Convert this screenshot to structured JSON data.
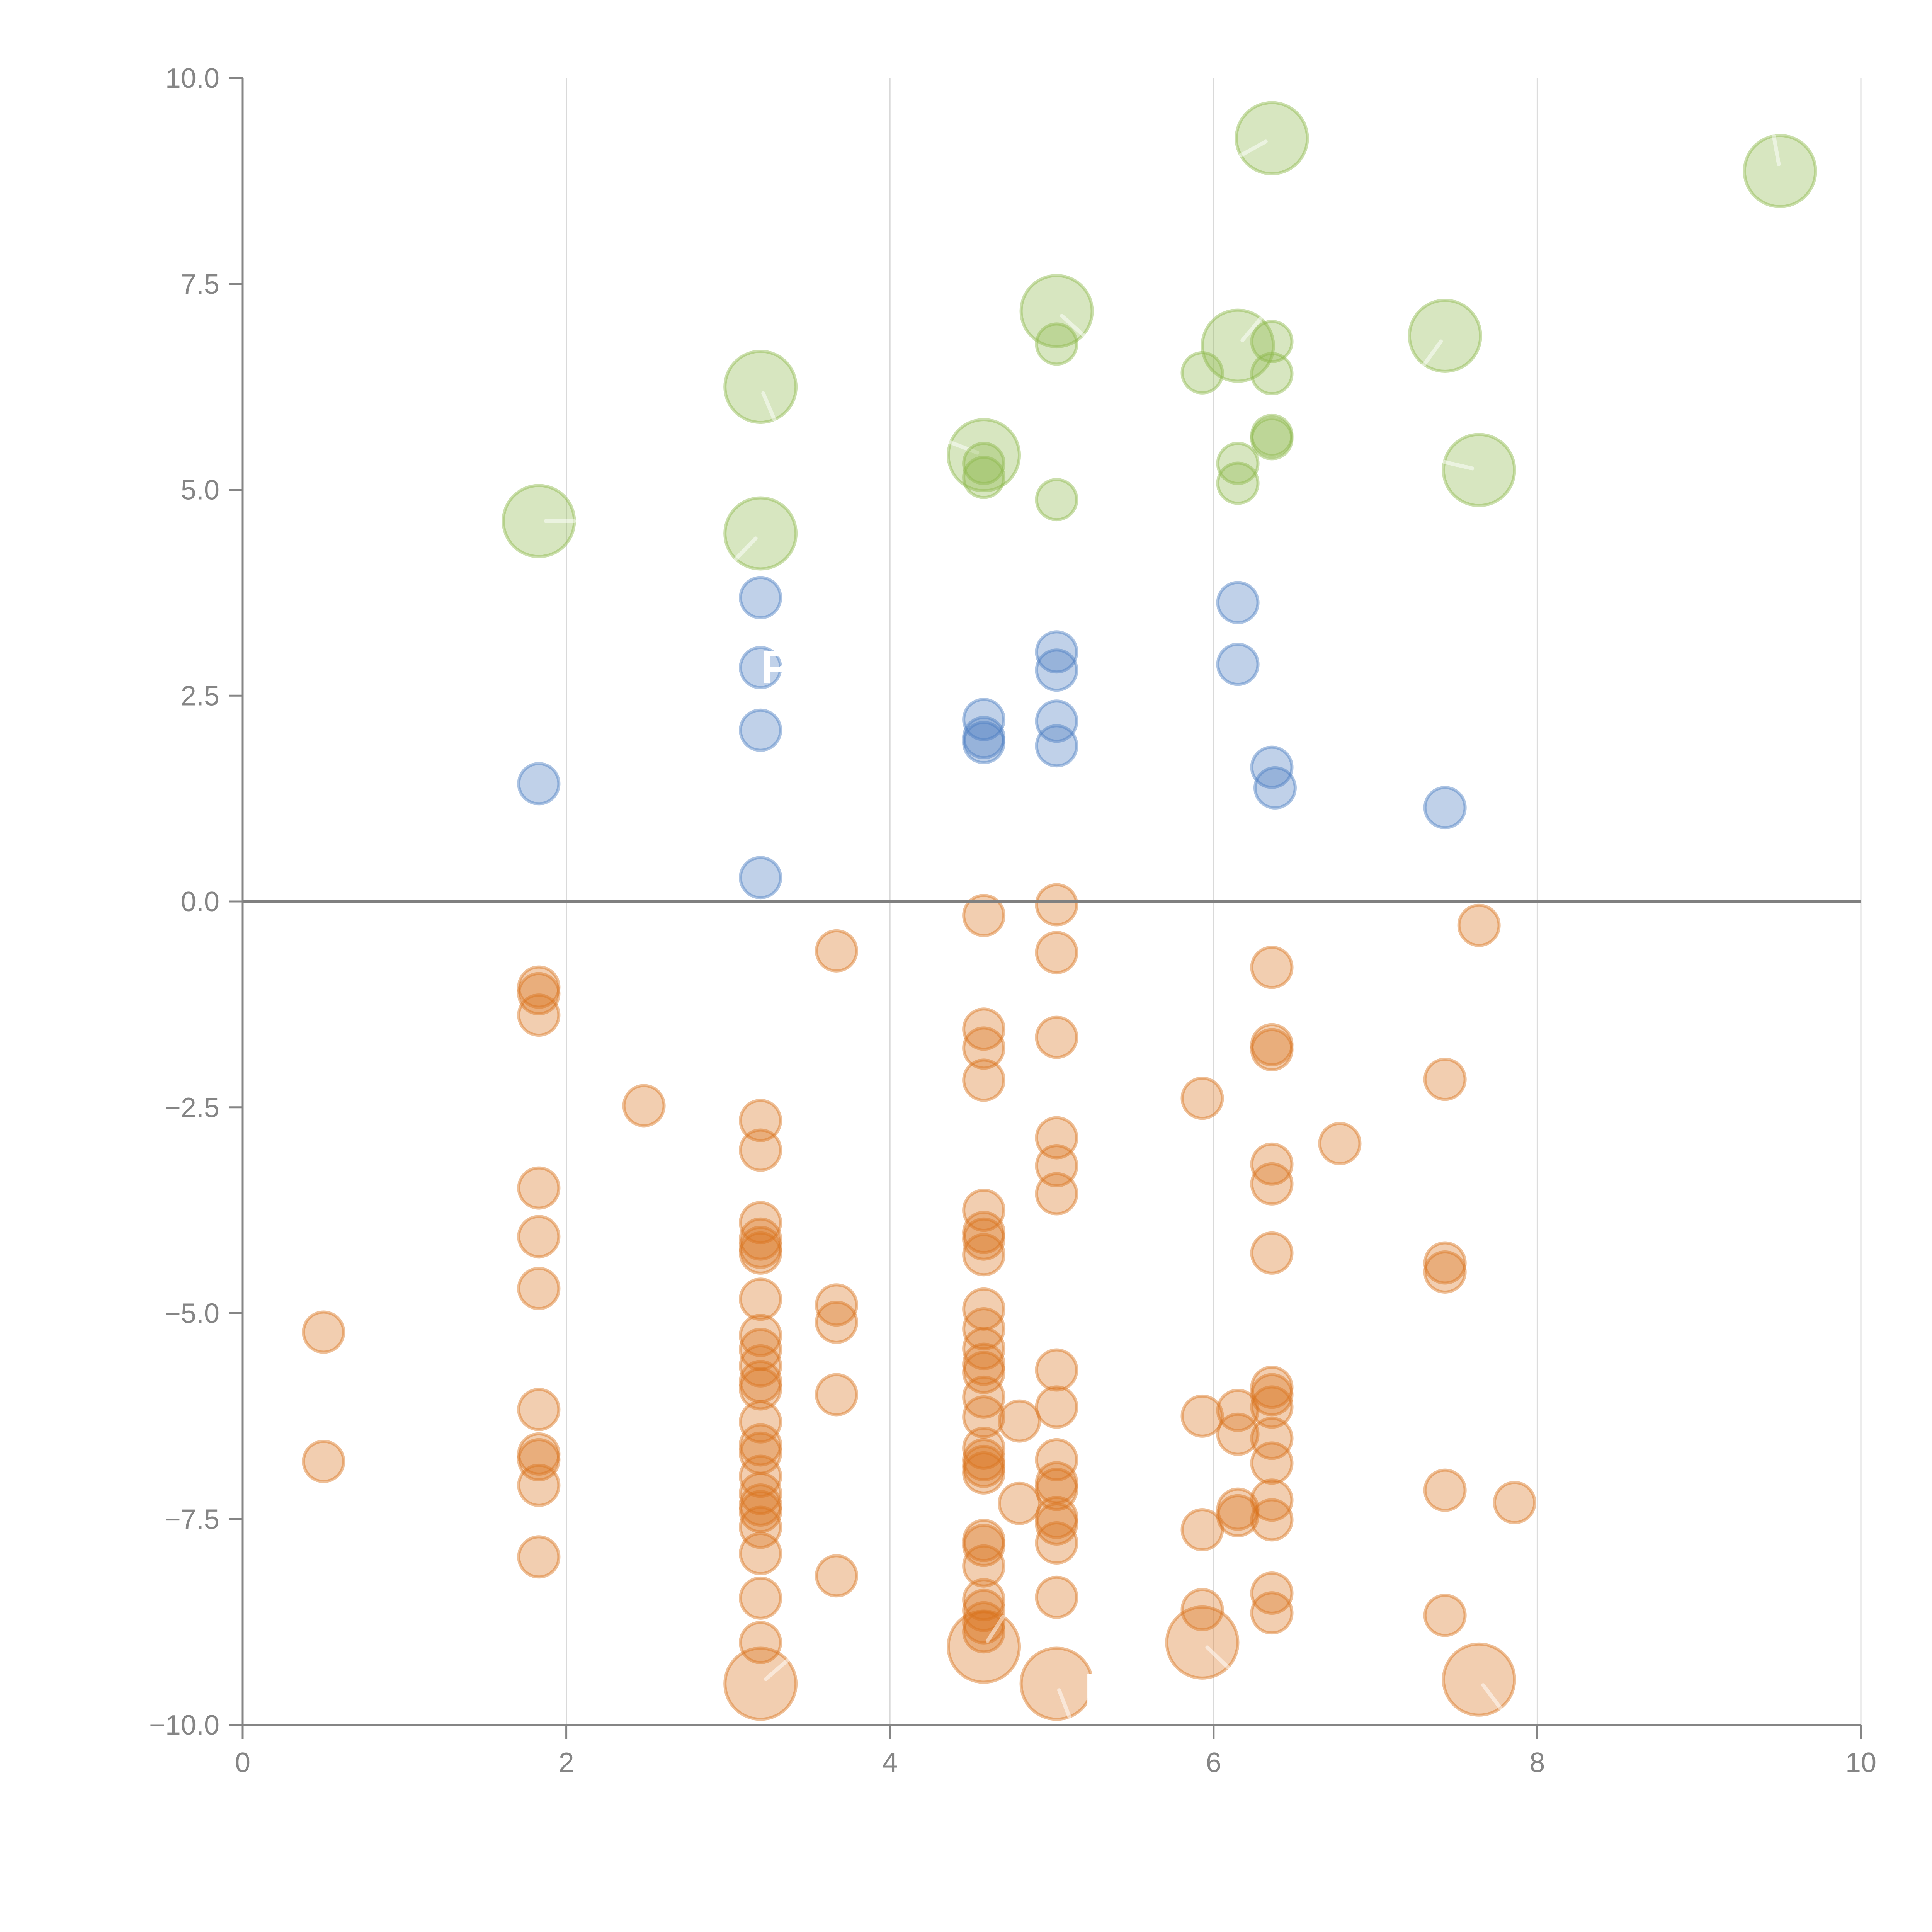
{
  "chart_data": {
    "type": "scatter",
    "variant": "bubble",
    "title": "",
    "xlabel": "",
    "ylabel": "",
    "xlim": [
      0,
      10
    ],
    "ylim": [
      -10,
      10
    ],
    "x_ticks": [
      0,
      2,
      4,
      6,
      8,
      10
    ],
    "x_tick_labels": [
      "0",
      "2",
      "4",
      "6",
      "8",
      "10"
    ],
    "y_ticks": [
      -10,
      -7.5,
      -5,
      -2.5,
      0,
      2.5,
      5,
      7.5,
      10
    ],
    "y_tick_labels": [
      "−10.0",
      "−7.5",
      "−5.0",
      "−2.5",
      "0.0",
      "2.5",
      "5.0",
      "7.5",
      "10.0"
    ],
    "grid": "vertical",
    "reference_line_y": 0,
    "legend": "none",
    "series": [
      {
        "name": "green",
        "color": "#8cb84a",
        "points": [
          {
            "x": 1.83,
            "y": 4.62,
            "size": "large"
          },
          {
            "x": 3.2,
            "y": 6.25,
            "size": "large"
          },
          {
            "x": 3.2,
            "y": 4.47,
            "size": "large"
          },
          {
            "x": 4.58,
            "y": 5.42,
            "size": "large"
          },
          {
            "x": 4.58,
            "y": 5.32,
            "size": "small"
          },
          {
            "x": 4.58,
            "y": 5.15,
            "size": "small"
          },
          {
            "x": 5.03,
            "y": 7.17,
            "size": "large"
          },
          {
            "x": 5.03,
            "y": 6.77,
            "size": "small"
          },
          {
            "x": 5.03,
            "y": 4.88,
            "size": "small"
          },
          {
            "x": 5.93,
            "y": 6.42,
            "size": "small"
          },
          {
            "x": 6.15,
            "y": 6.75,
            "size": "large"
          },
          {
            "x": 6.15,
            "y": 5.32,
            "size": "small"
          },
          {
            "x": 6.15,
            "y": 5.08,
            "size": "small"
          },
          {
            "x": 6.36,
            "y": 9.27,
            "size": "large"
          },
          {
            "x": 6.36,
            "y": 6.8,
            "size": "small"
          },
          {
            "x": 6.36,
            "y": 6.41,
            "size": "small"
          },
          {
            "x": 6.36,
            "y": 5.66,
            "size": "small"
          },
          {
            "x": 6.36,
            "y": 5.62,
            "size": "small"
          },
          {
            "x": 7.43,
            "y": 6.87,
            "size": "large"
          },
          {
            "x": 7.64,
            "y": 5.24,
            "size": "large"
          },
          {
            "x": 9.5,
            "y": 8.87,
            "size": "large"
          }
        ]
      },
      {
        "name": "blue",
        "color": "#4a7cc1",
        "points": [
          {
            "x": 1.83,
            "y": 1.43,
            "size": "small"
          },
          {
            "x": 3.2,
            "y": 3.69,
            "size": "small"
          },
          {
            "x": 3.2,
            "y": 2.84,
            "size": "small"
          },
          {
            "x": 3.2,
            "y": 2.08,
            "size": "small"
          },
          {
            "x": 3.2,
            "y": 0.29,
            "size": "small"
          },
          {
            "x": 4.58,
            "y": 2.21,
            "size": "small"
          },
          {
            "x": 4.58,
            "y": 1.99,
            "size": "small"
          },
          {
            "x": 4.58,
            "y": 1.93,
            "size": "small"
          },
          {
            "x": 5.03,
            "y": 3.03,
            "size": "small"
          },
          {
            "x": 5.03,
            "y": 2.81,
            "size": "small"
          },
          {
            "x": 5.03,
            "y": 2.19,
            "size": "small"
          },
          {
            "x": 5.03,
            "y": 1.89,
            "size": "small"
          },
          {
            "x": 6.15,
            "y": 3.63,
            "size": "small"
          },
          {
            "x": 6.15,
            "y": 2.88,
            "size": "small"
          },
          {
            "x": 6.36,
            "y": 1.63,
            "size": "small"
          },
          {
            "x": 6.38,
            "y": 1.38,
            "size": "small"
          },
          {
            "x": 7.43,
            "y": 1.14,
            "size": "small"
          }
        ]
      },
      {
        "name": "orange",
        "color": "#d9741c",
        "points": [
          {
            "x": 0.5,
            "y": -5.23,
            "size": "small"
          },
          {
            "x": 0.5,
            "y": -6.8,
            "size": "small"
          },
          {
            "x": 1.83,
            "y": -1.04,
            "size": "small"
          },
          {
            "x": 1.83,
            "y": -1.12,
            "size": "small"
          },
          {
            "x": 1.83,
            "y": -1.38,
            "size": "small"
          },
          {
            "x": 1.83,
            "y": -3.48,
            "size": "small"
          },
          {
            "x": 1.83,
            "y": -4.07,
            "size": "small"
          },
          {
            "x": 1.83,
            "y": -4.7,
            "size": "small"
          },
          {
            "x": 1.83,
            "y": -6.17,
            "size": "small"
          },
          {
            "x": 1.83,
            "y": -6.71,
            "size": "small"
          },
          {
            "x": 1.83,
            "y": -6.78,
            "size": "small"
          },
          {
            "x": 1.83,
            "y": -7.09,
            "size": "small"
          },
          {
            "x": 1.83,
            "y": -7.96,
            "size": "small"
          },
          {
            "x": 2.48,
            "y": -2.48,
            "size": "small"
          },
          {
            "x": 3.2,
            "y": -2.66,
            "size": "small"
          },
          {
            "x": 3.2,
            "y": -3.02,
            "size": "small"
          },
          {
            "x": 3.2,
            "y": -3.9,
            "size": "small"
          },
          {
            "x": 3.2,
            "y": -4.1,
            "size": "small"
          },
          {
            "x": 3.2,
            "y": -4.2,
            "size": "small"
          },
          {
            "x": 3.2,
            "y": -4.27,
            "size": "small"
          },
          {
            "x": 3.2,
            "y": -4.83,
            "size": "small"
          },
          {
            "x": 3.2,
            "y": -5.27,
            "size": "small"
          },
          {
            "x": 3.2,
            "y": -5.44,
            "size": "small"
          },
          {
            "x": 3.2,
            "y": -5.64,
            "size": "small"
          },
          {
            "x": 3.2,
            "y": -5.83,
            "size": "small"
          },
          {
            "x": 3.2,
            "y": -5.92,
            "size": "small"
          },
          {
            "x": 3.2,
            "y": -6.32,
            "size": "small"
          },
          {
            "x": 3.2,
            "y": -6.6,
            "size": "small"
          },
          {
            "x": 3.2,
            "y": -6.7,
            "size": "small"
          },
          {
            "x": 3.2,
            "y": -6.98,
            "size": "small"
          },
          {
            "x": 3.2,
            "y": -7.19,
            "size": "small"
          },
          {
            "x": 3.2,
            "y": -7.33,
            "size": "small"
          },
          {
            "x": 3.2,
            "y": -7.41,
            "size": "small"
          },
          {
            "x": 3.2,
            "y": -7.6,
            "size": "small"
          },
          {
            "x": 3.2,
            "y": -7.92,
            "size": "small"
          },
          {
            "x": 3.2,
            "y": -8.46,
            "size": "small"
          },
          {
            "x": 3.2,
            "y": -9.0,
            "size": "small"
          },
          {
            "x": 3.2,
            "y": -9.5,
            "size": "large"
          },
          {
            "x": 3.67,
            "y": -0.6,
            "size": "small"
          },
          {
            "x": 3.67,
            "y": -4.9,
            "size": "small"
          },
          {
            "x": 3.67,
            "y": -5.11,
            "size": "small"
          },
          {
            "x": 3.67,
            "y": -5.99,
            "size": "small"
          },
          {
            "x": 3.67,
            "y": -8.19,
            "size": "small"
          },
          {
            "x": 4.58,
            "y": -0.17,
            "size": "small"
          },
          {
            "x": 4.58,
            "y": -1.55,
            "size": "small"
          },
          {
            "x": 4.58,
            "y": -1.78,
            "size": "small"
          },
          {
            "x": 4.58,
            "y": -2.17,
            "size": "small"
          },
          {
            "x": 4.58,
            "y": -3.75,
            "size": "small"
          },
          {
            "x": 4.58,
            "y": -4.02,
            "size": "small"
          },
          {
            "x": 4.58,
            "y": -4.1,
            "size": "small"
          },
          {
            "x": 4.58,
            "y": -4.29,
            "size": "small"
          },
          {
            "x": 4.58,
            "y": -4.95,
            "size": "small"
          },
          {
            "x": 4.58,
            "y": -5.19,
            "size": "small"
          },
          {
            "x": 4.58,
            "y": -5.43,
            "size": "small"
          },
          {
            "x": 4.58,
            "y": -5.62,
            "size": "small"
          },
          {
            "x": 4.58,
            "y": -5.72,
            "size": "small"
          },
          {
            "x": 4.58,
            "y": -6.02,
            "size": "small"
          },
          {
            "x": 4.58,
            "y": -6.26,
            "size": "small"
          },
          {
            "x": 4.58,
            "y": -6.64,
            "size": "small"
          },
          {
            "x": 4.58,
            "y": -6.78,
            "size": "small"
          },
          {
            "x": 4.58,
            "y": -6.86,
            "size": "small"
          },
          {
            "x": 4.58,
            "y": -6.94,
            "size": "small"
          },
          {
            "x": 4.58,
            "y": -7.76,
            "size": "small"
          },
          {
            "x": 4.58,
            "y": -7.82,
            "size": "small"
          },
          {
            "x": 4.58,
            "y": -8.07,
            "size": "small"
          },
          {
            "x": 4.58,
            "y": -8.48,
            "size": "small"
          },
          {
            "x": 4.58,
            "y": -8.61,
            "size": "small"
          },
          {
            "x": 4.58,
            "y": -8.76,
            "size": "small"
          },
          {
            "x": 4.58,
            "y": -8.87,
            "size": "small"
          },
          {
            "x": 4.58,
            "y": -9.05,
            "size": "large"
          },
          {
            "x": 4.8,
            "y": -6.31,
            "size": "small"
          },
          {
            "x": 4.8,
            "y": -7.31,
            "size": "small"
          },
          {
            "x": 5.03,
            "y": -0.04,
            "size": "small"
          },
          {
            "x": 5.03,
            "y": -0.62,
            "size": "small"
          },
          {
            "x": 5.03,
            "y": -1.65,
            "size": "small"
          },
          {
            "x": 5.03,
            "y": -2.87,
            "size": "small"
          },
          {
            "x": 5.03,
            "y": -3.21,
            "size": "small"
          },
          {
            "x": 5.03,
            "y": -3.55,
            "size": "small"
          },
          {
            "x": 5.03,
            "y": -5.69,
            "size": "small"
          },
          {
            "x": 5.03,
            "y": -6.14,
            "size": "small"
          },
          {
            "x": 5.03,
            "y": -6.78,
            "size": "small"
          },
          {
            "x": 5.03,
            "y": -7.06,
            "size": "small"
          },
          {
            "x": 5.03,
            "y": -7.14,
            "size": "small"
          },
          {
            "x": 5.03,
            "y": -7.48,
            "size": "small"
          },
          {
            "x": 5.03,
            "y": -7.56,
            "size": "small"
          },
          {
            "x": 5.03,
            "y": -7.79,
            "size": "small"
          },
          {
            "x": 5.03,
            "y": -8.45,
            "size": "small"
          },
          {
            "x": 5.03,
            "y": -9.5,
            "size": "large"
          },
          {
            "x": 5.93,
            "y": -2.39,
            "size": "small"
          },
          {
            "x": 5.93,
            "y": -6.25,
            "size": "small"
          },
          {
            "x": 5.93,
            "y": -7.63,
            "size": "small"
          },
          {
            "x": 5.93,
            "y": -8.6,
            "size": "small"
          },
          {
            "x": 5.93,
            "y": -9.0,
            "size": "large"
          },
          {
            "x": 6.15,
            "y": -6.18,
            "size": "small"
          },
          {
            "x": 6.15,
            "y": -6.47,
            "size": "small"
          },
          {
            "x": 6.15,
            "y": -7.38,
            "size": "small"
          },
          {
            "x": 6.15,
            "y": -7.46,
            "size": "small"
          },
          {
            "x": 6.36,
            "y": -0.8,
            "size": "small"
          },
          {
            "x": 6.36,
            "y": -1.74,
            "size": "small"
          },
          {
            "x": 6.36,
            "y": -1.8,
            "size": "small"
          },
          {
            "x": 6.36,
            "y": -3.19,
            "size": "small"
          },
          {
            "x": 6.36,
            "y": -3.43,
            "size": "small"
          },
          {
            "x": 6.36,
            "y": -4.27,
            "size": "small"
          },
          {
            "x": 6.36,
            "y": -5.9,
            "size": "small"
          },
          {
            "x": 6.36,
            "y": -5.99,
            "size": "small"
          },
          {
            "x": 6.36,
            "y": -6.14,
            "size": "small"
          },
          {
            "x": 6.36,
            "y": -6.52,
            "size": "small"
          },
          {
            "x": 6.36,
            "y": -6.82,
            "size": "small"
          },
          {
            "x": 6.36,
            "y": -7.27,
            "size": "small"
          },
          {
            "x": 6.36,
            "y": -7.51,
            "size": "small"
          },
          {
            "x": 6.36,
            "y": -8.4,
            "size": "small"
          },
          {
            "x": 6.36,
            "y": -8.64,
            "size": "small"
          },
          {
            "x": 6.78,
            "y": -2.94,
            "size": "small"
          },
          {
            "x": 7.43,
            "y": -2.16,
            "size": "small"
          },
          {
            "x": 7.43,
            "y": -4.39,
            "size": "small"
          },
          {
            "x": 7.43,
            "y": -4.5,
            "size": "small"
          },
          {
            "x": 7.43,
            "y": -7.15,
            "size": "small"
          },
          {
            "x": 7.43,
            "y": -8.67,
            "size": "small"
          },
          {
            "x": 7.64,
            "y": -0.29,
            "size": "small"
          },
          {
            "x": 7.64,
            "y": -9.45,
            "size": "large"
          },
          {
            "x": 7.86,
            "y": -7.3,
            "size": "small"
          }
        ]
      }
    ],
    "marker_style": {
      "fill_opacity": 0.35,
      "stroke_opacity": 0.45,
      "large_marker_needle": true
    },
    "hidden_labels": [
      {
        "text": "P",
        "x": 3.2,
        "y": 2.84
      },
      {
        "text": "k",
        "x": 5.2,
        "y": -9.6
      }
    ]
  }
}
